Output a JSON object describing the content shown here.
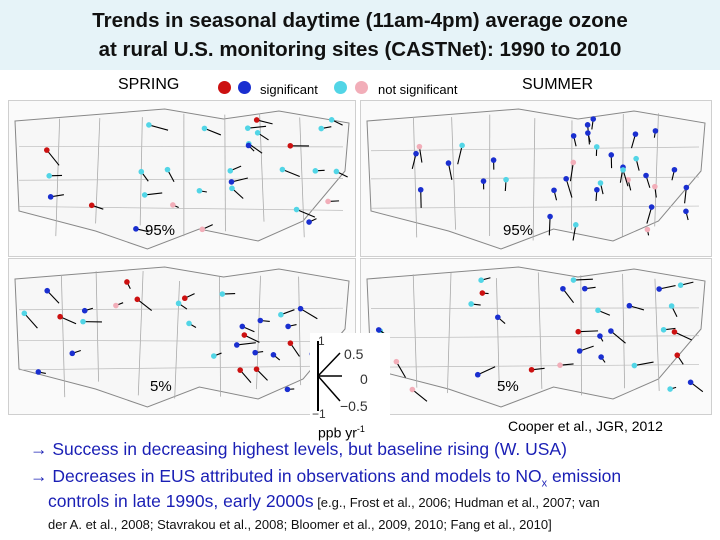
{
  "title": {
    "line1": "Trends in seasonal daytime (11am-4pm) average ozone",
    "line2": "at rural U.S. monitoring sites (CASTNet): 1990 to 2010"
  },
  "legend": {
    "spring": "SPRING",
    "summer": "SUMMER",
    "significant": "significant",
    "not_significant": "not significant",
    "colors": {
      "red": "#cc1111",
      "blue": "#1a2fd0",
      "cyan": "#52d5e6",
      "pink": "#f2aeb9"
    }
  },
  "panels": {
    "spring_95": "95%",
    "summer_95": "95%",
    "spring_5": "5%",
    "summer_5": "5%"
  },
  "scale_key": {
    "tick_pos": "0.5",
    "tick_zero": "0",
    "tick_neg": "−0.5",
    "label_one": "1",
    "label_neg_one": "−1",
    "units": "ppb yr",
    "units_sup": "-1"
  },
  "citation": "Cooper et al., JGR, 2012",
  "bullets": {
    "arrow": "→",
    "b1": "Success in decreasing highest levels, but baseline rising (W. USA)",
    "b2_pre": "Decreases in EUS attributed in observations and models to NO",
    "b2_sub": "x",
    "b2_post": " emission",
    "b3_main": "controls in late 1990s, early 2000s",
    "b3_ref": " [e.g., Frost et al., 2006; Hudman et al., 2007; van",
    "b4_ref": "der A. et al., 2008; Stavrakou et al., 2008; Bloomer et al., 2009, 2010; Fang et al., 2010]"
  }
}
